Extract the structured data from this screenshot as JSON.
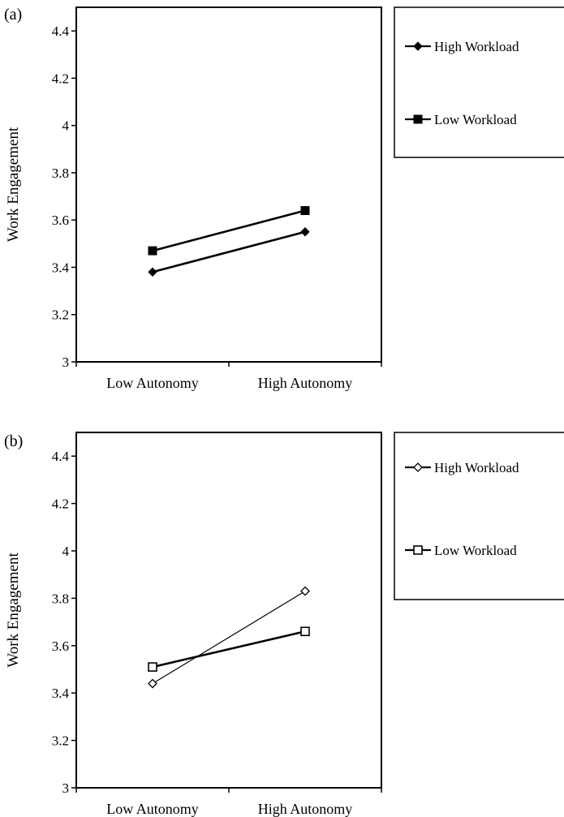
{
  "chart_data": [
    {
      "type": "line",
      "panel_label": "(a)",
      "ylabel": "Work Engagement",
      "xlabel": "",
      "categories": [
        "Low Autonomy",
        "High Autonomy"
      ],
      "ylim": [
        3,
        4.5
      ],
      "yticks": [
        "3",
        "3.2",
        "3.4",
        "3.6",
        "3.8",
        "4",
        "4.2",
        "4.4"
      ],
      "ytick_values": [
        3,
        3.2,
        3.4,
        3.6,
        3.8,
        4,
        4.2,
        4.4
      ],
      "legend_position": "right",
      "series": [
        {
          "name": "High Workload",
          "values": [
            3.38,
            3.55
          ],
          "marker": "diamond",
          "filled": true,
          "line": "thick"
        },
        {
          "name": "Low Workload",
          "values": [
            3.47,
            3.64
          ],
          "marker": "square",
          "filled": true,
          "line": "thick"
        }
      ]
    },
    {
      "type": "line",
      "panel_label": "(b)",
      "ylabel": "Work Engagement",
      "xlabel": "",
      "categories": [
        "Low Autonomy",
        "High Autonomy"
      ],
      "ylim": [
        3,
        4.5
      ],
      "yticks": [
        "3",
        "3.2",
        "3.4",
        "3.6",
        "3.8",
        "4",
        "4.2",
        "4.4"
      ],
      "ytick_values": [
        3,
        3.2,
        3.4,
        3.6,
        3.8,
        4,
        4.2,
        4.4
      ],
      "legend_position": "right",
      "series": [
        {
          "name": "High Workload",
          "values": [
            3.44,
            3.83
          ],
          "marker": "diamond",
          "filled": false,
          "line": "thin"
        },
        {
          "name": "Low Workload",
          "values": [
            3.51,
            3.66
          ],
          "marker": "square",
          "filled": false,
          "line": "thick"
        }
      ]
    }
  ]
}
